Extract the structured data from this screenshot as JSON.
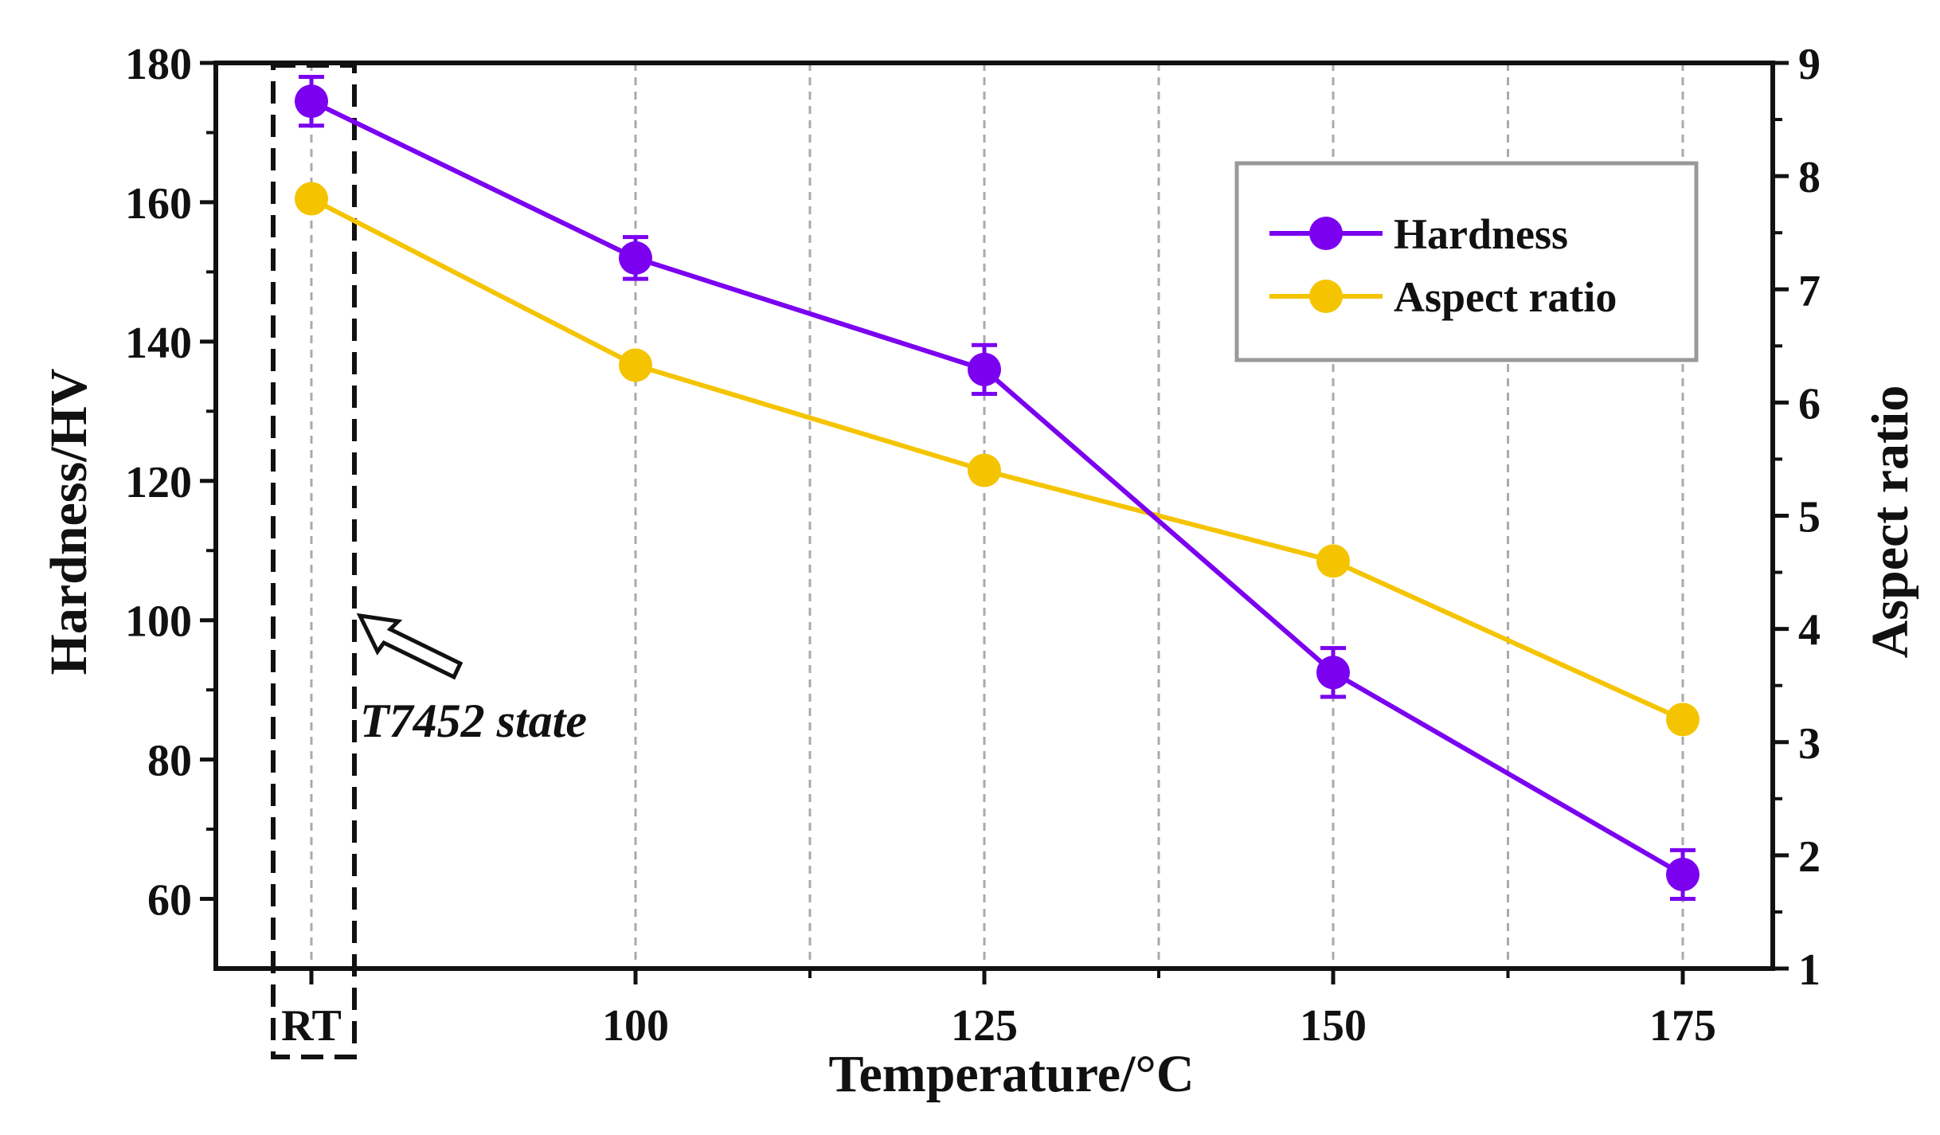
{
  "chart_data": {
    "type": "line",
    "title": "",
    "xlabel": "Temperature/°C",
    "ylabel": "Hardness/HV",
    "y2label": "Aspect ratio",
    "categories": [
      "RT",
      "100",
      "125",
      "150",
      "175"
    ],
    "ylim": [
      50,
      180
    ],
    "yticks": [
      "60",
      "80",
      "100",
      "120",
      "140",
      "160",
      "180"
    ],
    "y2lim": [
      1,
      9
    ],
    "y2ticks": [
      "1",
      "2",
      "3",
      "4",
      "5",
      "6",
      "7",
      "8",
      "9"
    ],
    "grid": "vertical dashed",
    "legend_position": "top-right",
    "series": [
      {
        "name": "Hardness",
        "axis": "left",
        "color": "#7b00f0",
        "values": [
          174.5,
          152,
          136,
          92.5,
          63.5
        ],
        "errors": [
          3.5,
          3.0,
          3.5,
          3.5,
          3.5
        ]
      },
      {
        "name": "Aspect ratio",
        "axis": "right",
        "color": "#f5c400",
        "values": [
          7.8,
          6.33,
          5.4,
          4.6,
          3.2
        ]
      }
    ],
    "annotation": {
      "text": "T7452 state",
      "target": "RT"
    }
  }
}
